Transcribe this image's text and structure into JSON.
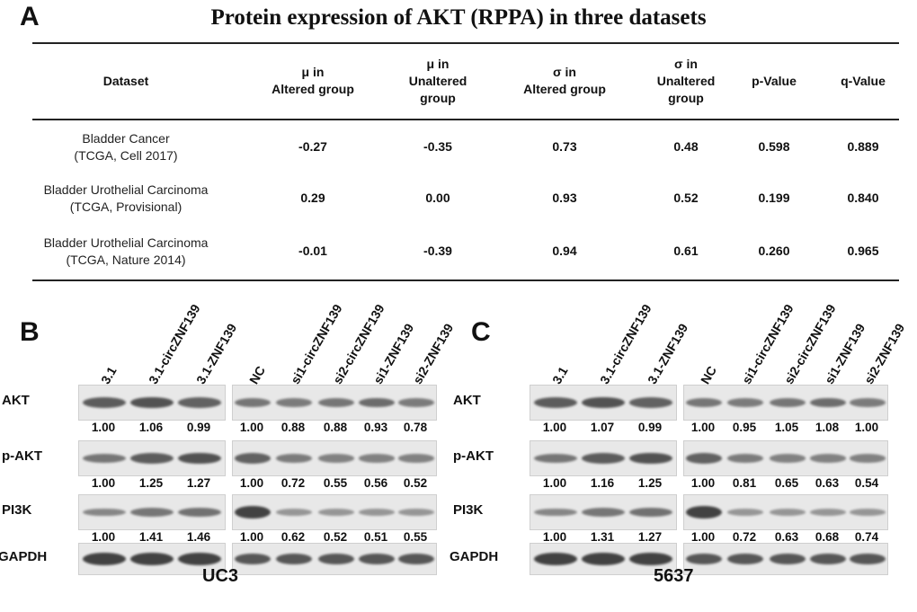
{
  "panel_a": {
    "letter": "A",
    "title": "Protein expression of AKT (RPPA) in three datasets",
    "headers": [
      "Dataset",
      "μ in\nAltered group",
      "μ in\nUnaltered\ngroup",
      "σ in\nAltered group",
      "σ in\nUnaltered\ngroup",
      "p-Value",
      "q-Value"
    ],
    "rows": [
      {
        "name": "Bladder Cancer\n(TCGA, Cell 2017)",
        "values": [
          "-0.27",
          "-0.35",
          "0.73",
          "0.48",
          "0.598",
          "0.889"
        ]
      },
      {
        "name": "Bladder Urothelial Carcinoma\n(TCGA, Provisional)",
        "values": [
          "0.29",
          "0.00",
          "0.93",
          "0.52",
          "0.199",
          "0.840"
        ]
      },
      {
        "name": "Bladder Urothelial Carcinoma\n(TCGA, Nature 2014)",
        "values": [
          "-0.01",
          "-0.39",
          "0.94",
          "0.61",
          "0.260",
          "0.965"
        ]
      }
    ]
  },
  "panel_b": {
    "letter": "B",
    "caption": "UC3",
    "lanes_left": [
      "3.1",
      "3.1-circZNF139",
      "3.1-ZNF139"
    ],
    "lanes_right": [
      "NC",
      "si1-circZNF139",
      "si2-circZNF139",
      "si1-ZNF139",
      "si2-ZNF139"
    ],
    "rows": [
      {
        "label": "AKT",
        "left": [
          "1.00",
          "1.06",
          "0.99"
        ],
        "right": [
          "1.00",
          "0.88",
          "0.88",
          "0.93",
          "0.78"
        ]
      },
      {
        "label": "p-AKT",
        "left": [
          "1.00",
          "1.25",
          "1.27"
        ],
        "right": [
          "1.00",
          "0.72",
          "0.55",
          "0.56",
          "0.52"
        ]
      },
      {
        "label": "PI3K",
        "left": [
          "1.00",
          "1.41",
          "1.46"
        ],
        "right": [
          "1.00",
          "0.62",
          "0.52",
          "0.51",
          "0.55"
        ]
      },
      {
        "label": "GAPDH",
        "left": [],
        "right": []
      }
    ]
  },
  "panel_c": {
    "letter": "C",
    "caption": "5637",
    "lanes_left": [
      "3.1",
      "3.1-circZNF139",
      "3.1-ZNF139"
    ],
    "lanes_right": [
      "NC",
      "si1-circZNF139",
      "si2-circZNF139",
      "si1-ZNF139",
      "si2-ZNF139"
    ],
    "rows": [
      {
        "label": "AKT",
        "left": [
          "1.00",
          "1.07",
          "0.99"
        ],
        "right": [
          "1.00",
          "0.95",
          "1.05",
          "1.08",
          "1.00"
        ]
      },
      {
        "label": "p-AKT",
        "left": [
          "1.00",
          "1.16",
          "1.25"
        ],
        "right": [
          "1.00",
          "0.81",
          "0.65",
          "0.63",
          "0.54"
        ]
      },
      {
        "label": "PI3K",
        "left": [
          "1.00",
          "1.31",
          "1.27"
        ],
        "right": [
          "1.00",
          "0.72",
          "0.63",
          "0.68",
          "0.74"
        ]
      },
      {
        "label": "GAPDH",
        "left": [],
        "right": []
      }
    ]
  }
}
